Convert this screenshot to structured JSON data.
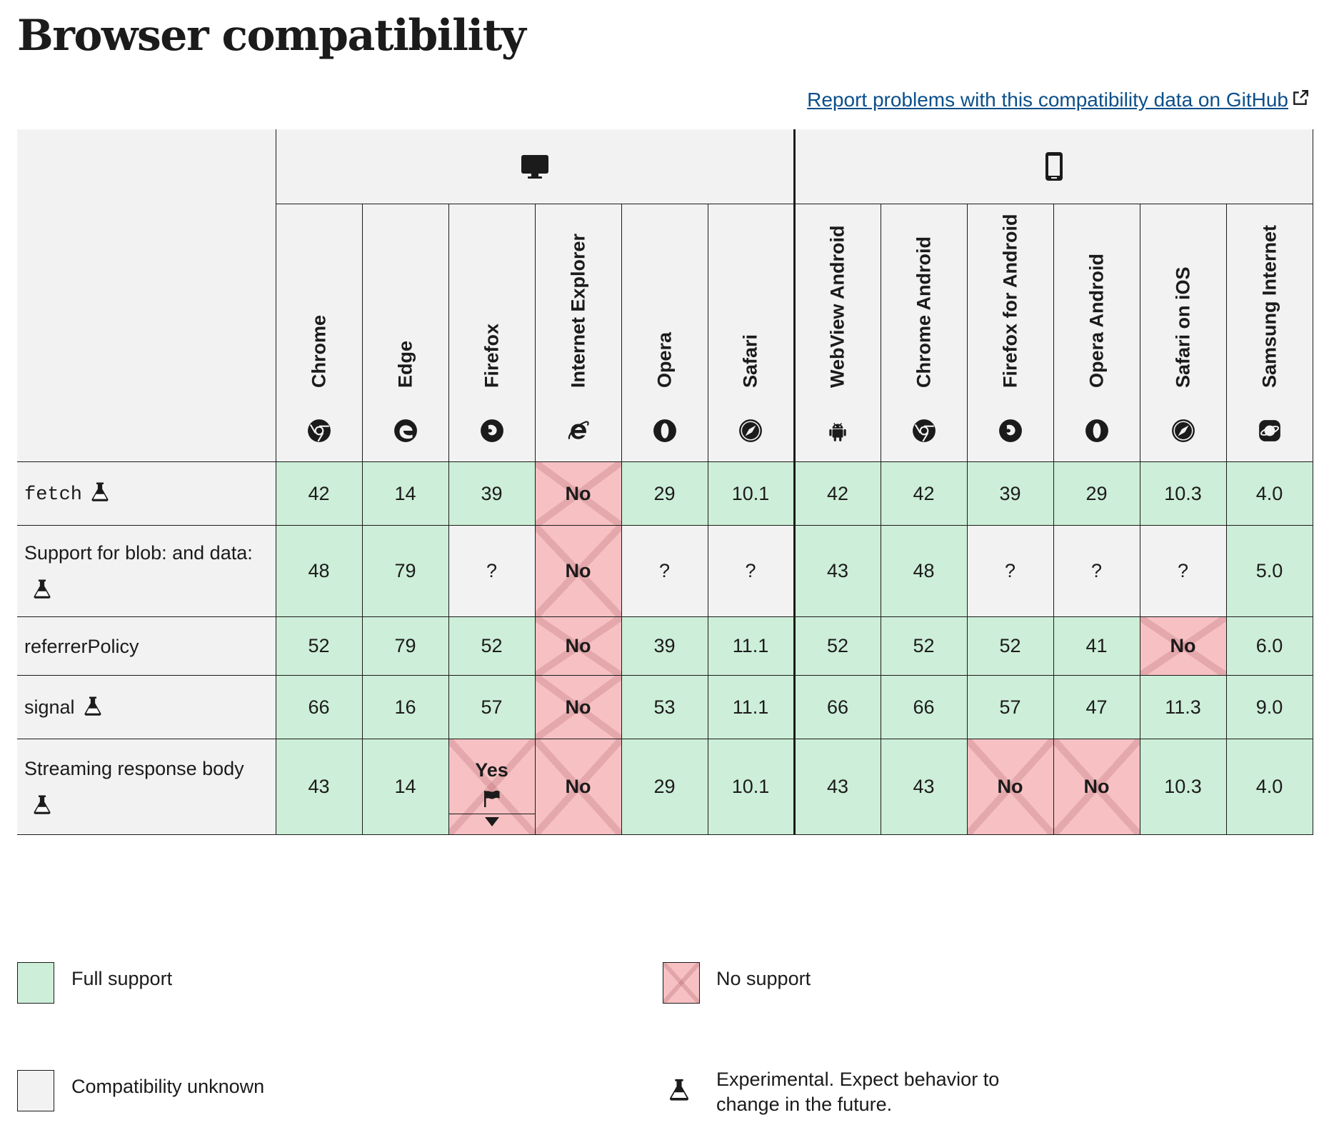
{
  "page": {
    "title": "Browser compatibility",
    "report_link": "Report problems with this compatibility data on GitHub"
  },
  "platforms": [
    {
      "name": "desktop",
      "icon": "desktop-icon"
    },
    {
      "name": "mobile",
      "icon": "mobile-icon"
    }
  ],
  "browsers": [
    {
      "label": "Chrome",
      "icon": "chrome-icon"
    },
    {
      "label": "Edge",
      "icon": "edge-icon"
    },
    {
      "label": "Firefox",
      "icon": "firefox-icon"
    },
    {
      "label": "Internet Explorer",
      "icon": "ie-icon"
    },
    {
      "label": "Opera",
      "icon": "opera-icon"
    },
    {
      "label": "Safari",
      "icon": "safari-icon"
    },
    {
      "label": "WebView Android",
      "icon": "android-icon"
    },
    {
      "label": "Chrome Android",
      "icon": "chrome-icon"
    },
    {
      "label": "Firefox for Android",
      "icon": "firefox-icon"
    },
    {
      "label": "Opera Android",
      "icon": "opera-icon"
    },
    {
      "label": "Safari on iOS",
      "icon": "safari-icon"
    },
    {
      "label": "Samsung Internet",
      "icon": "samsung-icon"
    }
  ],
  "features": [
    {
      "name": "fetch",
      "experimental": true,
      "cells": [
        {
          "v": "42",
          "s": "yes"
        },
        {
          "v": "14",
          "s": "yes"
        },
        {
          "v": "39",
          "s": "yes"
        },
        {
          "v": "No",
          "s": "no"
        },
        {
          "v": "29",
          "s": "yes"
        },
        {
          "v": "10.1",
          "s": "yes"
        },
        {
          "v": "42",
          "s": "yes"
        },
        {
          "v": "42",
          "s": "yes"
        },
        {
          "v": "39",
          "s": "yes"
        },
        {
          "v": "29",
          "s": "yes"
        },
        {
          "v": "10.3",
          "s": "yes"
        },
        {
          "v": "4.0",
          "s": "yes"
        }
      ]
    },
    {
      "name": "Support for blob: and data:",
      "experimental": true,
      "cells": [
        {
          "v": "48",
          "s": "yes"
        },
        {
          "v": "79",
          "s": "yes"
        },
        {
          "v": "?",
          "s": "unk"
        },
        {
          "v": "No",
          "s": "no"
        },
        {
          "v": "?",
          "s": "unk"
        },
        {
          "v": "?",
          "s": "unk"
        },
        {
          "v": "43",
          "s": "yes"
        },
        {
          "v": "48",
          "s": "yes"
        },
        {
          "v": "?",
          "s": "unk"
        },
        {
          "v": "?",
          "s": "unk"
        },
        {
          "v": "?",
          "s": "unk"
        },
        {
          "v": "5.0",
          "s": "yes"
        }
      ]
    },
    {
      "name": "referrerPolicy",
      "experimental": false,
      "cells": [
        {
          "v": "52",
          "s": "yes"
        },
        {
          "v": "79",
          "s": "yes"
        },
        {
          "v": "52",
          "s": "yes"
        },
        {
          "v": "No",
          "s": "no"
        },
        {
          "v": "39",
          "s": "yes"
        },
        {
          "v": "11.1",
          "s": "yes"
        },
        {
          "v": "52",
          "s": "yes"
        },
        {
          "v": "52",
          "s": "yes"
        },
        {
          "v": "52",
          "s": "yes"
        },
        {
          "v": "41",
          "s": "yes"
        },
        {
          "v": "No",
          "s": "no"
        },
        {
          "v": "6.0",
          "s": "yes"
        }
      ]
    },
    {
      "name": "signal",
      "experimental": true,
      "cells": [
        {
          "v": "66",
          "s": "yes"
        },
        {
          "v": "16",
          "s": "yes"
        },
        {
          "v": "57",
          "s": "yes"
        },
        {
          "v": "No",
          "s": "no"
        },
        {
          "v": "53",
          "s": "yes"
        },
        {
          "v": "11.1",
          "s": "yes"
        },
        {
          "v": "66",
          "s": "yes"
        },
        {
          "v": "66",
          "s": "yes"
        },
        {
          "v": "57",
          "s": "yes"
        },
        {
          "v": "47",
          "s": "yes"
        },
        {
          "v": "11.3",
          "s": "yes"
        },
        {
          "v": "9.0",
          "s": "yes"
        }
      ]
    },
    {
      "name": "Streaming response body",
      "experimental": true,
      "cells": [
        {
          "v": "43",
          "s": "yes"
        },
        {
          "v": "14",
          "s": "yes"
        },
        {
          "v": "Yes",
          "s": "no",
          "flag": true
        },
        {
          "v": "No",
          "s": "no"
        },
        {
          "v": "29",
          "s": "yes"
        },
        {
          "v": "10.1",
          "s": "yes"
        },
        {
          "v": "43",
          "s": "yes"
        },
        {
          "v": "43",
          "s": "yes"
        },
        {
          "v": "No",
          "s": "no"
        },
        {
          "v": "No",
          "s": "no"
        },
        {
          "v": "10.3",
          "s": "yes"
        },
        {
          "v": "4.0",
          "s": "yes"
        }
      ]
    }
  ],
  "legend": {
    "full_support": "Full support",
    "no_support": "No support",
    "unknown": "Compatibility unknown",
    "experimental_line1": "Experimental. Expect behavior to",
    "experimental_line2": "change in the future."
  },
  "colors": {
    "full_support": "#cdeed8",
    "no_support": "#f7c1c3",
    "unknown": "#f2f2f2",
    "link": "#0b4f8a"
  }
}
